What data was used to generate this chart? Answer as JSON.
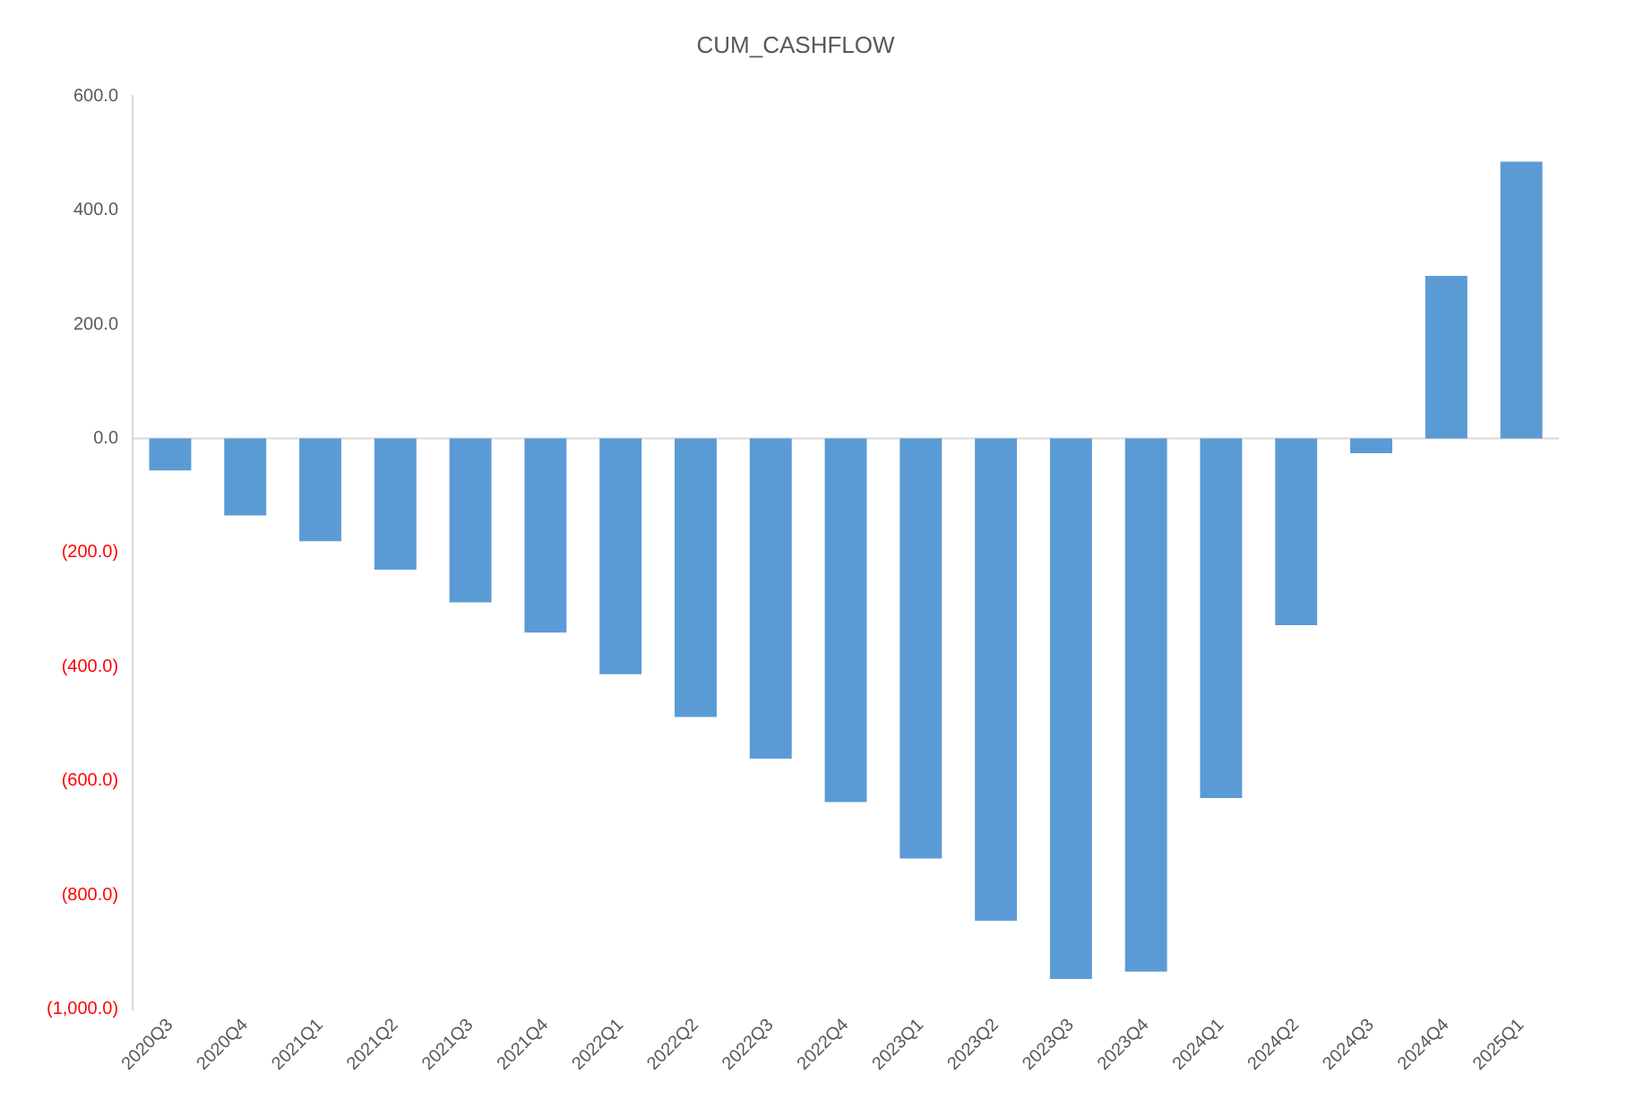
{
  "chart_data": {
    "type": "bar",
    "title": "CUM_CASHFLOW",
    "categories": [
      "2020Q3",
      "2020Q4",
      "2021Q1",
      "2021Q2",
      "2021Q3",
      "2021Q4",
      "2022Q1",
      "2022Q2",
      "2022Q3",
      "2022Q4",
      "2023Q1",
      "2023Q2",
      "2023Q3",
      "2023Q4",
      "2024Q1",
      "2024Q2",
      "2024Q3",
      "2024Q4",
      "2025Q1"
    ],
    "values": [
      -56,
      -135,
      -180,
      -230,
      -287,
      -340,
      -413,
      -488,
      -561,
      -637,
      -736,
      -845,
      -947,
      -934,
      -630,
      -327,
      -26,
      285,
      485
    ],
    "color": "#5b9bd5",
    "ylim": [
      -1000,
      600
    ],
    "yticks": [
      {
        "value": -1000,
        "label": "(1,000.0)"
      },
      {
        "value": -800,
        "label": "(800.0)"
      },
      {
        "value": -600,
        "label": "(600.0)"
      },
      {
        "value": -400,
        "label": "(400.0)"
      },
      {
        "value": -200,
        "label": "(200.0)"
      },
      {
        "value": 0,
        "label": "0.0"
      },
      {
        "value": 200,
        "label": "200.0"
      },
      {
        "value": 400,
        "label": "400.0"
      },
      {
        "value": 600,
        "label": "600.0"
      }
    ],
    "grid": false,
    "ref_lines": [
      {
        "axis": "y",
        "value": 0,
        "color": "#d9d9d9"
      }
    ]
  }
}
